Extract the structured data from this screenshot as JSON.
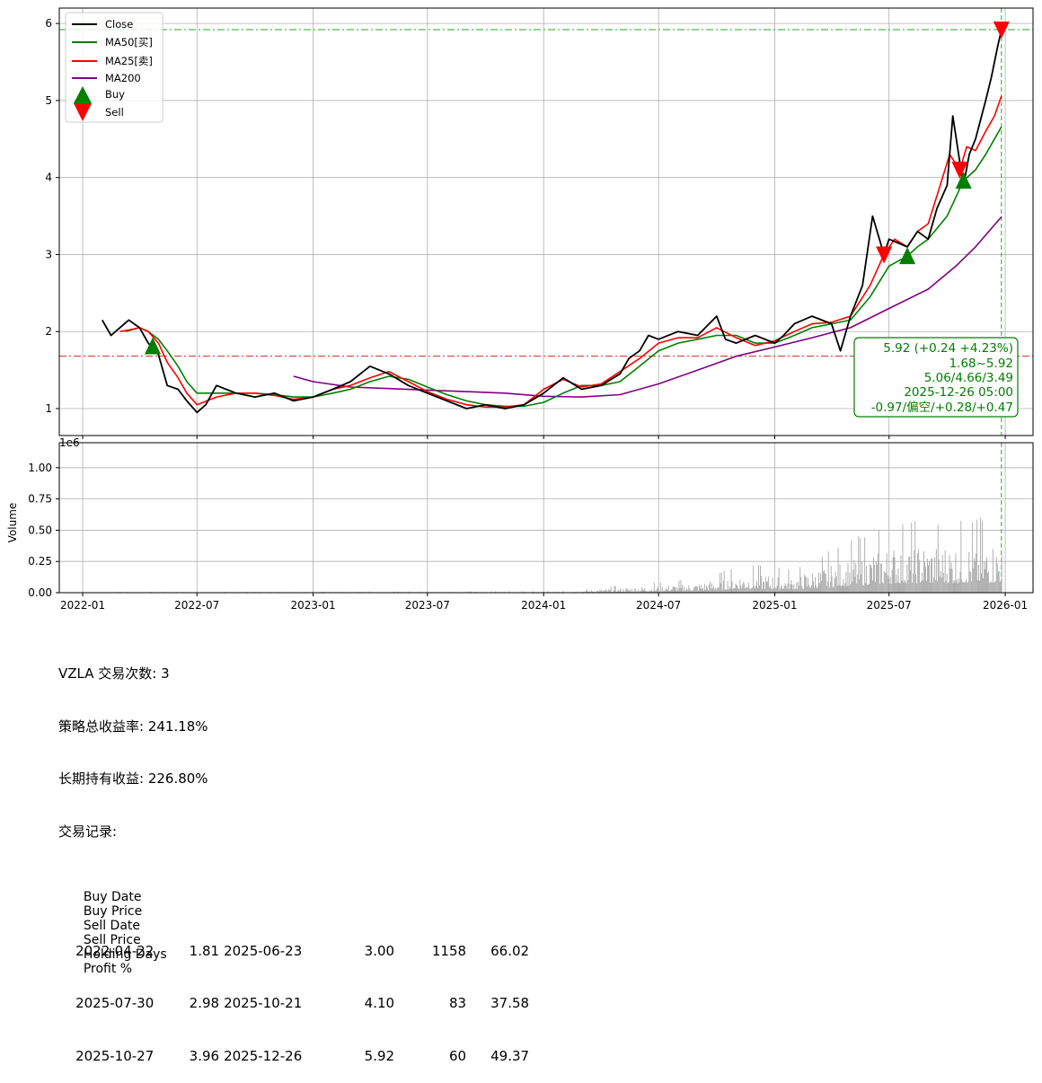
{
  "chart_data": [
    {
      "type": "line",
      "panel": "price",
      "ylim": [
        0.65,
        6.2
      ],
      "yticks": [
        "1",
        "2",
        "3",
        "4",
        "5",
        "6"
      ],
      "ytick_values": [
        1,
        2,
        3,
        4,
        5,
        6
      ],
      "grid": true,
      "legend_position": "top-left",
      "legend": {
        "close": "Close",
        "ma50": "MA50[买]",
        "ma25": "MA25[卖]",
        "ma200": "MA200",
        "buy": "Buy",
        "sell": "Sell"
      },
      "colors": {
        "close": "#000000",
        "ma50": "#008000",
        "ma25": "#ff0000",
        "ma200": "#800080",
        "buy": "#008000",
        "sell": "#ff0000",
        "hline_high": "#2ca02c",
        "hline_low": "#d62728"
      },
      "hlines": {
        "high": 5.92,
        "low": 1.68
      },
      "vline_date": "2025-12-26",
      "info_box": [
        "5.92 (+0.24 +4.23%)",
        "1.68~5.92",
        "5.06/4.66/3.49",
        "2025-12-26 05:00",
        "-0.97/偏空/+0.28/+0.47"
      ],
      "buy_markers": [
        {
          "date": "2022-04-22",
          "price": 1.81
        },
        {
          "date": "2025-07-30",
          "price": 2.98
        },
        {
          "date": "2025-10-27",
          "price": 3.96
        }
      ],
      "sell_markers": [
        {
          "date": "2025-06-23",
          "price": 3.0
        },
        {
          "date": "2025-10-21",
          "price": 4.1
        },
        {
          "date": "2025-12-26",
          "price": 5.92
        }
      ],
      "series": [
        {
          "key": "close",
          "name": "Close",
          "x": [
            "2022-02-01",
            "2022-02-15",
            "2022-03-01",
            "2022-03-15",
            "2022-04-01",
            "2022-04-15",
            "2022-05-01",
            "2022-05-15",
            "2022-06-01",
            "2022-06-15",
            "2022-07-01",
            "2022-07-15",
            "2022-08-01",
            "2022-09-01",
            "2022-10-01",
            "2022-11-01",
            "2022-12-01",
            "2023-01-01",
            "2023-02-01",
            "2023-03-01",
            "2023-04-01",
            "2023-05-01",
            "2023-06-01",
            "2023-07-01",
            "2023-08-01",
            "2023-09-01",
            "2023-10-01",
            "2023-11-01",
            "2023-12-01",
            "2024-01-01",
            "2024-02-01",
            "2024-03-01",
            "2024-04-01",
            "2024-05-01",
            "2024-05-15",
            "2024-06-01",
            "2024-06-15",
            "2024-07-01",
            "2024-08-01",
            "2024-09-01",
            "2024-10-01",
            "2024-10-15",
            "2024-11-01",
            "2024-12-01",
            "2025-01-01",
            "2025-01-15",
            "2025-02-01",
            "2025-03-01",
            "2025-04-01",
            "2025-04-15",
            "2025-05-01",
            "2025-05-20",
            "2025-06-05",
            "2025-06-23",
            "2025-07-01",
            "2025-07-30",
            "2025-08-15",
            "2025-09-01",
            "2025-09-15",
            "2025-10-01",
            "2025-10-10",
            "2025-10-21",
            "2025-10-27",
            "2025-11-05",
            "2025-11-15",
            "2025-12-01",
            "2025-12-10",
            "2025-12-20",
            "2025-12-26"
          ],
          "values": [
            2.15,
            1.95,
            2.05,
            2.15,
            2.05,
            1.85,
            1.7,
            1.3,
            1.25,
            1.1,
            0.95,
            1.05,
            1.3,
            1.2,
            1.15,
            1.2,
            1.1,
            1.15,
            1.25,
            1.35,
            1.55,
            1.45,
            1.3,
            1.2,
            1.1,
            1.0,
            1.05,
            1.0,
            1.05,
            1.2,
            1.4,
            1.25,
            1.3,
            1.45,
            1.65,
            1.75,
            1.95,
            1.9,
            2.0,
            1.95,
            2.2,
            1.9,
            1.85,
            1.95,
            1.85,
            1.95,
            2.1,
            2.2,
            2.1,
            1.75,
            2.2,
            2.6,
            3.5,
            3.0,
            3.2,
            3.1,
            3.3,
            3.2,
            3.6,
            3.9,
            4.8,
            4.2,
            3.9,
            4.3,
            4.5,
            5.0,
            5.3,
            5.7,
            5.92
          ]
        },
        {
          "key": "ma50",
          "name": "MA50[买]",
          "x": [
            "2022-03-10",
            "2022-04-01",
            "2022-04-15",
            "2022-05-01",
            "2022-05-15",
            "2022-06-01",
            "2022-06-15",
            "2022-07-01",
            "2022-08-01",
            "2022-09-01",
            "2022-10-01",
            "2022-11-01",
            "2022-12-01",
            "2023-01-01",
            "2023-02-01",
            "2023-03-01",
            "2023-04-01",
            "2023-05-01",
            "2023-06-01",
            "2023-07-01",
            "2023-08-01",
            "2023-09-01",
            "2023-10-01",
            "2023-11-01",
            "2023-12-01",
            "2024-01-01",
            "2024-02-01",
            "2024-03-01",
            "2024-04-01",
            "2024-05-01",
            "2024-06-01",
            "2024-07-01",
            "2024-08-01",
            "2024-09-01",
            "2024-10-01",
            "2024-11-01",
            "2024-12-01",
            "2025-01-01",
            "2025-02-01",
            "2025-03-01",
            "2025-04-01",
            "2025-05-01",
            "2025-06-01",
            "2025-07-01",
            "2025-07-30",
            "2025-08-15",
            "2025-09-01",
            "2025-10-01",
            "2025-10-27",
            "2025-11-15",
            "2025-12-01",
            "2025-12-15",
            "2025-12-26"
          ],
          "values": [
            2.0,
            2.05,
            2.0,
            1.9,
            1.75,
            1.55,
            1.35,
            1.2,
            1.2,
            1.2,
            1.2,
            1.18,
            1.15,
            1.15,
            1.2,
            1.25,
            1.35,
            1.42,
            1.38,
            1.28,
            1.18,
            1.1,
            1.05,
            1.03,
            1.03,
            1.08,
            1.2,
            1.3,
            1.3,
            1.35,
            1.55,
            1.75,
            1.85,
            1.9,
            1.95,
            1.95,
            1.85,
            1.85,
            1.95,
            2.05,
            2.1,
            2.15,
            2.45,
            2.85,
            2.98,
            3.1,
            3.2,
            3.5,
            3.96,
            4.1,
            4.3,
            4.5,
            4.66
          ]
        },
        {
          "key": "ma25",
          "name": "MA25[卖]",
          "x": [
            "2022-03-01",
            "2022-03-15",
            "2022-04-01",
            "2022-04-15",
            "2022-05-01",
            "2022-05-15",
            "2022-06-01",
            "2022-06-15",
            "2022-07-01",
            "2022-08-01",
            "2022-09-01",
            "2022-10-01",
            "2022-11-01",
            "2022-12-01",
            "2023-01-01",
            "2023-02-01",
            "2023-03-01",
            "2023-04-01",
            "2023-05-01",
            "2023-06-01",
            "2023-07-01",
            "2023-08-01",
            "2023-09-01",
            "2023-10-01",
            "2023-11-01",
            "2023-12-01",
            "2024-01-01",
            "2024-02-01",
            "2024-03-01",
            "2024-04-01",
            "2024-05-01",
            "2024-06-01",
            "2024-07-01",
            "2024-08-01",
            "2024-09-01",
            "2024-10-01",
            "2024-11-01",
            "2024-12-01",
            "2025-01-01",
            "2025-02-01",
            "2025-03-01",
            "2025-04-01",
            "2025-05-01",
            "2025-06-01",
            "2025-06-23",
            "2025-07-10",
            "2025-07-30",
            "2025-08-15",
            "2025-09-01",
            "2025-09-20",
            "2025-10-05",
            "2025-10-21",
            "2025-11-01",
            "2025-11-15",
            "2025-12-01",
            "2025-12-15",
            "2025-12-26"
          ],
          "values": [
            2.0,
            2.02,
            2.05,
            2.0,
            1.85,
            1.6,
            1.4,
            1.2,
            1.05,
            1.15,
            1.2,
            1.2,
            1.17,
            1.12,
            1.15,
            1.25,
            1.3,
            1.4,
            1.48,
            1.35,
            1.22,
            1.12,
            1.05,
            1.02,
            1.02,
            1.05,
            1.25,
            1.38,
            1.28,
            1.32,
            1.48,
            1.65,
            1.85,
            1.92,
            1.92,
            2.05,
            1.92,
            1.82,
            1.88,
            2.0,
            2.1,
            2.12,
            2.2,
            2.6,
            3.0,
            3.2,
            3.1,
            3.3,
            3.4,
            3.9,
            4.3,
            4.1,
            4.4,
            4.35,
            4.6,
            4.8,
            5.06
          ]
        },
        {
          "key": "ma200",
          "name": "MA200",
          "x": [
            "2022-12-01",
            "2023-01-01",
            "2023-03-01",
            "2023-05-01",
            "2023-07-01",
            "2023-09-01",
            "2023-11-01",
            "2024-01-01",
            "2024-03-01",
            "2024-05-01",
            "2024-07-01",
            "2024-09-01",
            "2024-11-01",
            "2025-01-01",
            "2025-03-01",
            "2025-05-01",
            "2025-07-01",
            "2025-09-01",
            "2025-10-15",
            "2025-11-15",
            "2025-12-26"
          ],
          "values": [
            1.42,
            1.35,
            1.28,
            1.26,
            1.24,
            1.22,
            1.2,
            1.16,
            1.15,
            1.18,
            1.32,
            1.5,
            1.68,
            1.8,
            1.92,
            2.05,
            2.3,
            2.55,
            2.85,
            3.1,
            3.49
          ]
        }
      ]
    },
    {
      "type": "bar",
      "panel": "volume",
      "ylabel": "Volume",
      "scale_label": "1e6",
      "ylim": [
        0,
        1.2
      ],
      "yticks": [
        "0.00",
        "0.25",
        "0.50",
        "0.75",
        "1.00"
      ],
      "ytick_values": [
        0,
        0.25,
        0.5,
        0.75,
        1.0
      ],
      "grid": true,
      "bar_color": "#aaaaaa",
      "xticks": [
        "2022-01",
        "2022-07",
        "2023-01",
        "2023-07",
        "2024-01",
        "2024-07",
        "2025-01",
        "2025-07",
        "2026-01"
      ],
      "profile": [
        {
          "x": "2022-01-25",
          "value": 0.003
        },
        {
          "x": "2024-02-01",
          "value": 0.006
        },
        {
          "x": "2024-05-01",
          "value": 0.03
        },
        {
          "x": "2024-09-01",
          "value": 0.06
        },
        {
          "x": "2024-11-15",
          "value": 0.12
        },
        {
          "x": "2025-02-01",
          "value": 0.1
        },
        {
          "x": "2025-05-01",
          "value": 0.22
        },
        {
          "x": "2025-07-15",
          "value": 0.3
        },
        {
          "x": "2025-10-01",
          "value": 0.3
        },
        {
          "x": "2025-12-26",
          "value": 0.32
        }
      ]
    }
  ],
  "stats": {
    "line1": "VZLA 交易次数: 3",
    "line2": "策略总收益率: 241.18%",
    "line3": "长期持有收益: 226.80%",
    "line4": "交易记录:",
    "headers": [
      "Buy Date",
      "Buy Price",
      "Sell Date",
      "Sell Price",
      "Holding Days",
      "Profit %"
    ],
    "trades": [
      [
        "2022-04-22",
        "1.81",
        "2025-06-23",
        "3.00",
        "1158",
        "66.02"
      ],
      [
        "2025-07-30",
        "2.98",
        "2025-10-21",
        "4.10",
        "83",
        "37.58"
      ],
      [
        "2025-10-27",
        "3.96",
        "2025-12-26",
        "5.92",
        "60",
        "49.37"
      ]
    ]
  }
}
